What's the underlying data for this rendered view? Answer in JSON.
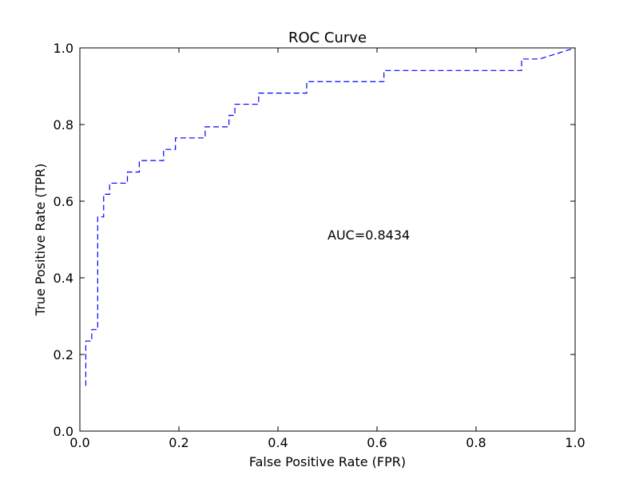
{
  "chart_data": {
    "type": "line",
    "title": "ROC Curve",
    "xlabel": "False Positive Rate (FPR)",
    "ylabel": "True Positive Rate (TPR)",
    "xlim": [
      0.0,
      1.0
    ],
    "ylim": [
      0.0,
      1.0
    ],
    "xticks": [
      "0.0",
      "0.2",
      "0.4",
      "0.6",
      "0.8",
      "1.0"
    ],
    "yticks": [
      "0.0",
      "0.2",
      "0.4",
      "0.6",
      "0.8",
      "1.0"
    ],
    "grid": false,
    "annotation": {
      "text": "AUC=0.8434",
      "x": 0.5,
      "y": 0.5
    },
    "series": [
      {
        "color": "#0000ff",
        "line_style": "dashed",
        "x": [
          0.012,
          0.012,
          0.012,
          0.024,
          0.024,
          0.036,
          0.036,
          0.036,
          0.048,
          0.048,
          0.06,
          0.06,
          0.096,
          0.096,
          0.12,
          0.12,
          0.169,
          0.169,
          0.193,
          0.193,
          0.253,
          0.253,
          0.301,
          0.301,
          0.313,
          0.313,
          0.361,
          0.361,
          0.458,
          0.458,
          0.614,
          0.614,
          0.892,
          0.892,
          0.928,
          1.0
        ],
        "y": [
          0.118,
          0.206,
          0.235,
          0.235,
          0.265,
          0.265,
          0.559,
          0.559,
          0.559,
          0.618,
          0.618,
          0.647,
          0.647,
          0.676,
          0.676,
          0.706,
          0.706,
          0.735,
          0.735,
          0.765,
          0.765,
          0.794,
          0.794,
          0.824,
          0.824,
          0.853,
          0.853,
          0.882,
          0.882,
          0.912,
          0.912,
          0.941,
          0.941,
          0.971,
          0.971,
          1.0
        ]
      }
    ]
  }
}
